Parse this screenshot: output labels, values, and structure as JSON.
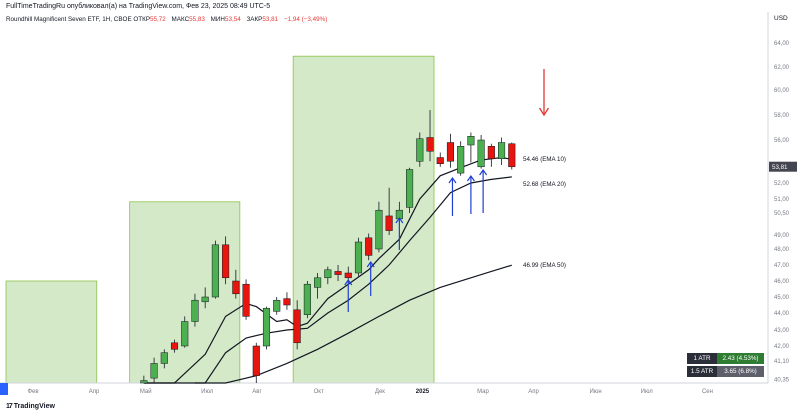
{
  "header": {
    "caption": "FullTimeTradingRu опубликовал(а) на TradingView.com, Фев 23, 2025 08:49 UTC-5",
    "symbol": "Roundhill Magnificent Seven ETF, 1Н, CBOE",
    "open_label": "ОТКР",
    "open": "55,72",
    "high_label": "МАКС",
    "high": "55,83",
    "low_label": "МИН",
    "low": "53,54",
    "close_label": "ЗАКР",
    "close": "53,81",
    "change": "−1,94 (−3,49%)"
  },
  "currency": "USD",
  "footer": {
    "logo_mark": "17",
    "logo_text": "TradingView"
  },
  "atr": [
    {
      "label": "1 ATR",
      "value": "2.43 (4.53%)"
    },
    {
      "label": "1.5 ATR",
      "value": "3.65 (6.8%)"
    }
  ],
  "colors": {
    "up": "#4caf50",
    "down": "#e8150f",
    "ema": "#131722",
    "zone": "#d4e9c8",
    "zone_border": "#8bc34a",
    "arrow_blue": "#1e3fd0",
    "arrow_red": "#e53935"
  },
  "chart_data": {
    "type": "candlestick",
    "title": "Roundhill Magnificent Seven ETF, 1Н, CBOE",
    "ylabel": "USD",
    "ylim": [
      40.2,
      65.6
    ],
    "y_ticks": [
      "40,35",
      "41,10",
      "42,00",
      "43,00",
      "44,00",
      "45,00",
      "46,00",
      "47,00",
      "48,00",
      "49,00",
      "50,50",
      "51,00",
      "52,00",
      "54,00",
      "56,00",
      "58,00",
      "60,00",
      "62,00",
      "64,00"
    ],
    "y_tick_values": [
      40.35,
      41.1,
      42.0,
      43.0,
      44.0,
      45.0,
      46.0,
      47.0,
      48.0,
      49.0,
      50.5,
      51.0,
      52.0,
      54.0,
      56.0,
      58.0,
      60.0,
      62.0,
      64.0
    ],
    "x_ticks": [
      "Фев",
      "Апр",
      "Май",
      "Июл",
      "Авг",
      "Окт",
      "Дек",
      "2025",
      "Мар",
      "Апр",
      "Июн",
      "Июл",
      "Сен"
    ],
    "x_tick_index": [
      2,
      8,
      13,
      19,
      24,
      30,
      36,
      40,
      46,
      51,
      57,
      62,
      68
    ],
    "candles": [
      {
        "i": 13,
        "o": 40.1,
        "h": 40.5,
        "l": 39.8,
        "c": 40.3
      },
      {
        "i": 14,
        "o": 40.4,
        "h": 41.3,
        "l": 40.2,
        "c": 41.0
      },
      {
        "i": 15,
        "o": 41.0,
        "h": 41.8,
        "l": 40.8,
        "c": 41.6
      },
      {
        "i": 16,
        "o": 42.2,
        "h": 42.4,
        "l": 41.6,
        "c": 41.8
      },
      {
        "i": 17,
        "o": 42.0,
        "h": 43.8,
        "l": 41.9,
        "c": 43.5
      },
      {
        "i": 18,
        "o": 43.5,
        "h": 45.2,
        "l": 43.2,
        "c": 44.8
      },
      {
        "i": 19,
        "o": 44.7,
        "h": 45.6,
        "l": 44.3,
        "c": 45.0
      },
      {
        "i": 20,
        "o": 45.0,
        "h": 48.6,
        "l": 44.9,
        "c": 48.3
      },
      {
        "i": 21,
        "o": 48.3,
        "h": 48.9,
        "l": 45.8,
        "c": 46.2
      },
      {
        "i": 22,
        "o": 46.0,
        "h": 46.7,
        "l": 44.9,
        "c": 45.2
      },
      {
        "i": 23,
        "o": 45.8,
        "h": 46.1,
        "l": 43.6,
        "c": 43.8
      },
      {
        "i": 24,
        "o": 42.0,
        "h": 42.2,
        "l": 40.2,
        "c": 40.5
      },
      {
        "i": 25,
        "o": 42.0,
        "h": 44.4,
        "l": 41.8,
        "c": 44.3
      },
      {
        "i": 26,
        "o": 44.1,
        "h": 45.0,
        "l": 43.9,
        "c": 44.8
      },
      {
        "i": 27,
        "o": 44.9,
        "h": 45.3,
        "l": 44.2,
        "c": 44.5
      },
      {
        "i": 28,
        "o": 44.2,
        "h": 44.8,
        "l": 41.8,
        "c": 42.2
      },
      {
        "i": 29,
        "o": 43.9,
        "h": 46.0,
        "l": 43.7,
        "c": 45.8
      },
      {
        "i": 30,
        "o": 45.6,
        "h": 46.5,
        "l": 44.9,
        "c": 46.2
      },
      {
        "i": 31,
        "o": 46.2,
        "h": 46.9,
        "l": 45.8,
        "c": 46.7
      },
      {
        "i": 32,
        "o": 46.6,
        "h": 47.0,
        "l": 46.0,
        "c": 46.4
      },
      {
        "i": 33,
        "o": 46.5,
        "h": 46.9,
        "l": 45.9,
        "c": 46.2
      },
      {
        "i": 34,
        "o": 46.5,
        "h": 48.8,
        "l": 46.3,
        "c": 48.5
      },
      {
        "i": 35,
        "o": 48.8,
        "h": 49.1,
        "l": 47.3,
        "c": 47.6
      },
      {
        "i": 36,
        "o": 48.0,
        "h": 50.9,
        "l": 47.8,
        "c": 50.6
      },
      {
        "i": 37,
        "o": 50.3,
        "h": 51.7,
        "l": 49.0,
        "c": 49.3
      },
      {
        "i": 38,
        "o": 50.1,
        "h": 50.9,
        "l": 49.8,
        "c": 50.6
      },
      {
        "i": 39,
        "o": 50.7,
        "h": 53.7,
        "l": 50.5,
        "c": 53.5
      },
      {
        "i": 40,
        "o": 54.3,
        "h": 56.6,
        "l": 53.8,
        "c": 56.1
      },
      {
        "i": 41,
        "o": 56.2,
        "h": 58.4,
        "l": 54.3,
        "c": 55.1
      },
      {
        "i": 42,
        "o": 54.6,
        "h": 55.0,
        "l": 53.8,
        "c": 54.1
      },
      {
        "i": 43,
        "o": 55.8,
        "h": 56.5,
        "l": 53.7,
        "c": 54.3
      },
      {
        "i": 44,
        "o": 53.1,
        "h": 55.9,
        "l": 52.8,
        "c": 55.5
      },
      {
        "i": 45,
        "o": 55.6,
        "h": 56.6,
        "l": 54.2,
        "c": 56.3
      },
      {
        "i": 46,
        "o": 53.8,
        "h": 56.4,
        "l": 53.6,
        "c": 56.0
      },
      {
        "i": 47,
        "o": 55.5,
        "h": 55.7,
        "l": 53.8,
        "c": 54.5
      },
      {
        "i": 48,
        "o": 54.5,
        "h": 56.2,
        "l": 54.0,
        "c": 55.8
      },
      {
        "i": 49,
        "o": 55.7,
        "h": 55.8,
        "l": 53.5,
        "c": 53.8
      }
    ],
    "ema": [
      {
        "name": "EMA 10",
        "label": "54.46 (EMA 10)",
        "last": 54.46,
        "points": [
          [
            13,
            36.5
          ],
          [
            16,
            38.2
          ],
          [
            19,
            41.5
          ],
          [
            21,
            43.8
          ],
          [
            23,
            44.6
          ],
          [
            24,
            44.4
          ],
          [
            26,
            43.5
          ],
          [
            27,
            43.6
          ],
          [
            28,
            43.2
          ],
          [
            29,
            43.4
          ],
          [
            31,
            44.9
          ],
          [
            33,
            45.8
          ],
          [
            35,
            46.7
          ],
          [
            36,
            47.4
          ],
          [
            38,
            48.7
          ],
          [
            40,
            51.0
          ],
          [
            42,
            52.8
          ],
          [
            44,
            53.7
          ],
          [
            46,
            54.4
          ],
          [
            47,
            54.5
          ],
          [
            48,
            54.6
          ],
          [
            49,
            54.46
          ]
        ]
      },
      {
        "name": "EMA 20",
        "label": "52.68 (EMA 20)",
        "last": 52.68,
        "points": [
          [
            13,
            35.8
          ],
          [
            16,
            37.0
          ],
          [
            19,
            39.5
          ],
          [
            21,
            41.6
          ],
          [
            23,
            42.5
          ],
          [
            25,
            42.8
          ],
          [
            27,
            43.0
          ],
          [
            29,
            43.1
          ],
          [
            31,
            44.0
          ],
          [
            33,
            44.8
          ],
          [
            35,
            45.8
          ],
          [
            37,
            47.0
          ],
          [
            39,
            48.6
          ],
          [
            41,
            50.2
          ],
          [
            43,
            51.4
          ],
          [
            45,
            52.0
          ],
          [
            47,
            52.4
          ],
          [
            49,
            52.68
          ]
        ]
      },
      {
        "name": "EMA 50",
        "label": "46.99 (EMA 50)",
        "last": 46.99,
        "points": [
          [
            18,
            39.7
          ],
          [
            21,
            40.0
          ],
          [
            24,
            40.5
          ],
          [
            27,
            41.0
          ],
          [
            30,
            41.8
          ],
          [
            33,
            42.8
          ],
          [
            36,
            43.8
          ],
          [
            39,
            44.8
          ],
          [
            42,
            45.6
          ],
          [
            45,
            46.2
          ],
          [
            47,
            46.6
          ],
          [
            49,
            46.99
          ]
        ]
      }
    ],
    "zones": [
      {
        "x0": 0,
        "x1": 8,
        "y0": 40.2,
        "y1": 46.0
      },
      {
        "x0": 12,
        "x1": 22,
        "y0": 40.2,
        "y1": 50.9
      },
      {
        "x0": 28,
        "x1": 41,
        "y0": 40.2,
        "y1": 62.9
      }
    ],
    "current_price": "53,81",
    "up_arrows": [
      33,
      35,
      38,
      43,
      45,
      46
    ],
    "down_arrow": 50
  }
}
